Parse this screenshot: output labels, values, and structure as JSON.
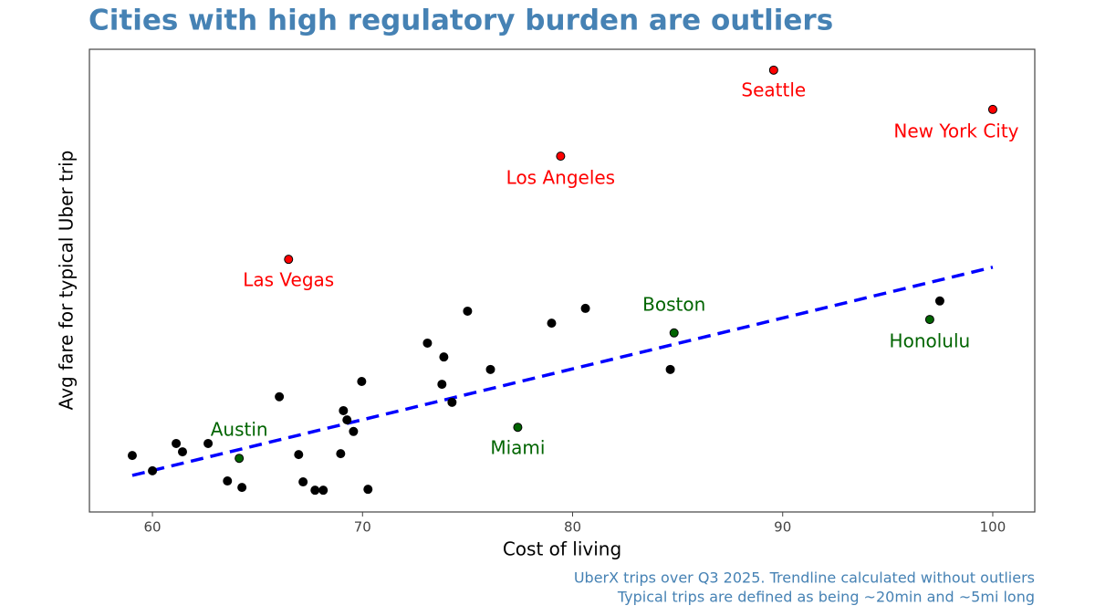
{
  "chart_data": {
    "type": "scatter",
    "title": "Cities with high regulatory burden are outliers",
    "xlabel": "Cost of living",
    "ylabel": "Avg fare for typical Uber trip",
    "caption": [
      "UberX trips over Q3 2025. Trendline calculated without outliers",
      "Typical trips are defined as being ~20min and ~5mi long"
    ],
    "xlim": [
      57,
      102
    ],
    "xticks": [
      60,
      70,
      80,
      90,
      100
    ],
    "ylim": [
      0,
      100
    ],
    "series": [
      {
        "color": "#000000",
        "x": [
          59.04,
          60.0,
          61.13,
          61.43,
          62.65,
          63.57,
          64.26,
          66.04,
          66.96,
          67.17,
          67.74,
          68.13,
          68.96,
          69.09,
          69.26,
          69.57,
          69.96,
          70.26,
          73.09,
          73.78,
          73.87,
          74.26,
          75.0,
          76.09,
          79.0,
          80.61,
          84.65,
          97.48
        ],
        "values": [
          12.2,
          8.9,
          14.8,
          13.0,
          14.8,
          6.7,
          5.3,
          24.9,
          12.4,
          6.5,
          4.7,
          4.7,
          12.6,
          21.9,
          19.9,
          17.4,
          28.2,
          4.9,
          36.5,
          27.6,
          33.5,
          23.7,
          43.4,
          30.8,
          40.8,
          44.0,
          30.8,
          45.6
        ]
      },
      {
        "color": "#006400",
        "x": [
          64.13,
          77.39,
          84.83,
          97.0
        ],
        "values": [
          11.6,
          18.3,
          38.7,
          41.6
        ],
        "labels": [
          "Austin",
          "Miami",
          "Boston",
          "Honolulu"
        ]
      },
      {
        "color": "#ff0000",
        "x": [
          66.48,
          79.43,
          89.57,
          100.0
        ],
        "values": [
          54.6,
          76.9,
          95.5,
          87.0
        ],
        "labels": [
          "Las Vegas",
          "Los Angeles",
          "Seattle",
          "New York City"
        ]
      }
    ],
    "trendline": {
      "color": "#0000ff",
      "x": [
        59.04,
        100
      ],
      "values": [
        7.9,
        52.9
      ]
    }
  }
}
